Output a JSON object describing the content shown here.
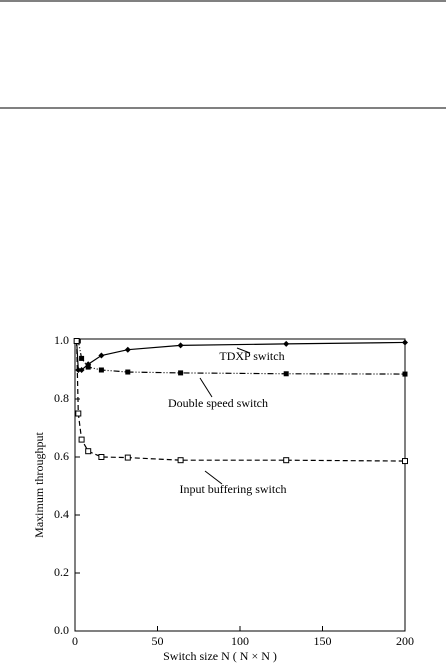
{
  "chart_data": {
    "type": "line",
    "xlabel": "Switch size N ( N × N )",
    "ylabel": "Maximum throughput",
    "xlim": [
      0,
      200
    ],
    "ylim": [
      0,
      1.0
    ],
    "xticks": [
      0,
      50,
      100,
      150,
      200
    ],
    "yticks": [
      {
        "value": 0,
        "label": "0.0"
      },
      {
        "value": 0.2,
        "label": "0.2"
      },
      {
        "value": 0.4,
        "label": "0.4"
      },
      {
        "value": 0.6,
        "label": "0.6"
      },
      {
        "value": 0.8,
        "label": "0.8"
      },
      {
        "value": 1.0,
        "label": "1.0"
      }
    ],
    "series": [
      {
        "name": "TDXP switch",
        "color": "#000000",
        "dash": "solid",
        "marker": "diamond",
        "x": [
          1,
          2,
          4,
          8,
          16,
          32,
          64,
          128,
          200
        ],
        "values": [
          1.0,
          0.9,
          0.9,
          0.92,
          0.95,
          0.97,
          0.985,
          0.99,
          0.995
        ]
      },
      {
        "name": "Double speed switch",
        "color": "#000000",
        "dash": "dashdotdot",
        "marker": "filled-square",
        "x": [
          1,
          2,
          4,
          8,
          16,
          32,
          64,
          128,
          200
        ],
        "values": [
          1.0,
          1.0,
          0.94,
          0.91,
          0.9,
          0.893,
          0.89,
          0.887,
          0.886
        ]
      },
      {
        "name": "Input buffering switch",
        "color": "#000000",
        "dash": "dashed",
        "marker": "open-square",
        "x": [
          1,
          2,
          4,
          8,
          16,
          32,
          64,
          128,
          200
        ],
        "values": [
          1.0,
          0.75,
          0.66,
          0.62,
          0.6,
          0.598,
          0.589,
          0.589,
          0.586
        ]
      }
    ]
  }
}
